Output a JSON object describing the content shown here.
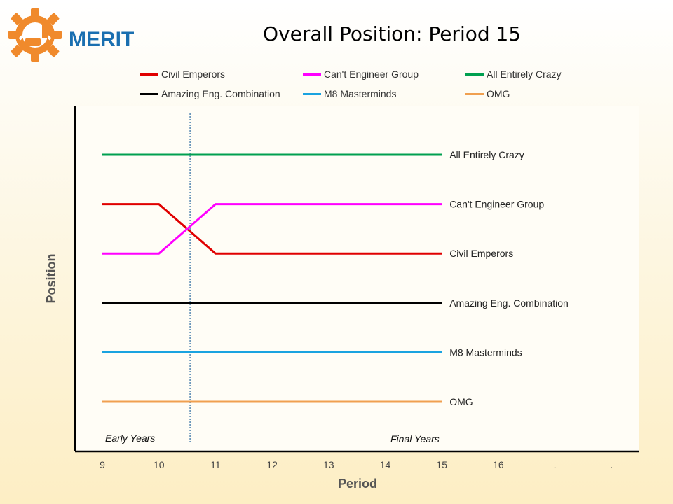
{
  "logo": {
    "text": "MERIT",
    "icon": "gear-bridge-logo-icon",
    "gear_color": "#f08a2c",
    "text_color": "#1a6fb0"
  },
  "chart_data": {
    "type": "line",
    "title": "Overall Position: Period 15",
    "xlabel": "Period",
    "ylabel": "Position",
    "x_ticks": [
      "9",
      "10",
      "11",
      "12",
      "13",
      "14",
      "15",
      "16",
      ".",
      "."
    ],
    "x": [
      9,
      10,
      11,
      12,
      13,
      14,
      15
    ],
    "ylim": [
      0.5,
      6.5
    ],
    "y_inverted": true,
    "grid": false,
    "legend_position": "top",
    "series": [
      {
        "name": "Civil Emperors",
        "color": "#e00000",
        "end_label": "Civil Emperors",
        "values": [
          2,
          2,
          3,
          3,
          3,
          3,
          3
        ]
      },
      {
        "name": "Can't Engineer Group",
        "color": "#ff00ff",
        "end_label": "Can't Engineer Group",
        "values": [
          3,
          3,
          2,
          2,
          2,
          2,
          2
        ]
      },
      {
        "name": "All Entirely Crazy",
        "color": "#00a050",
        "end_label": "All Entirely Crazy",
        "values": [
          1,
          1,
          1,
          1,
          1,
          1,
          1
        ]
      },
      {
        "name": "Amazing Eng. Combination",
        "color": "#000000",
        "end_label": "Amazing Eng. Combination",
        "values": [
          4,
          4,
          4,
          4,
          4,
          4,
          4
        ]
      },
      {
        "name": "M8 Masterminds",
        "color": "#1aa3e0",
        "end_label": "M8 Masterminds",
        "values": [
          5,
          5,
          5,
          5,
          5,
          5,
          5
        ]
      },
      {
        "name": "OMG",
        "color": "#f0a050",
        "end_label": "OMG",
        "values": [
          6,
          6,
          6,
          6,
          6,
          6,
          6
        ]
      }
    ],
    "annotations": [
      {
        "text": "Early Years",
        "x": 9.5
      },
      {
        "text": "Final Years",
        "x": 14.5
      }
    ],
    "divider_x": 10.55
  }
}
